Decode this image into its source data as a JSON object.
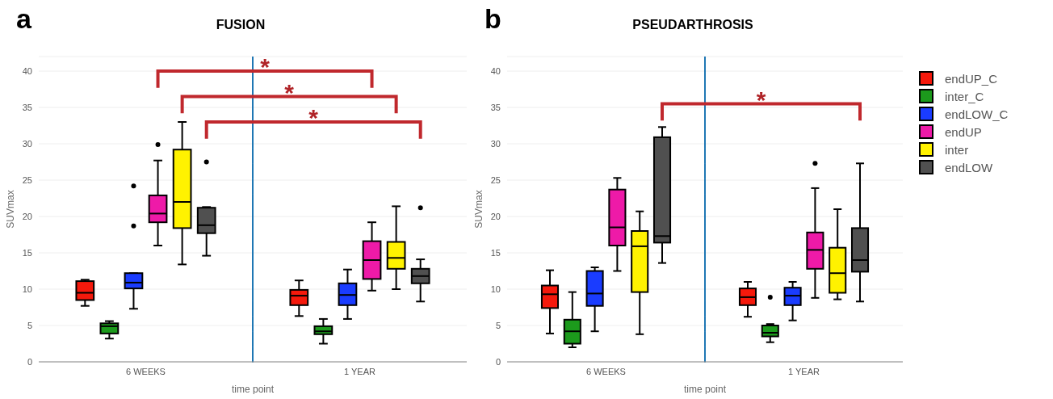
{
  "chart_data": [
    {
      "type": "box",
      "title": "FUSION",
      "xlabel": "time point",
      "ylabel": "SUVmax",
      "categories": [
        "6 WEEKS",
        "1 YEAR"
      ],
      "ylim": [
        0,
        42
      ],
      "yticks": [
        0,
        5,
        10,
        15,
        20,
        25,
        30,
        35,
        40
      ],
      "grid": "y",
      "legend": false,
      "annotations": [
        "a",
        "*",
        "*",
        "*"
      ],
      "series": [
        {
          "color": "#f5190c",
          "boxes": [
            {
              "low": 7.7,
              "q1": 8.5,
              "median": 9.5,
              "q3": 11.1,
              "high": 11.3
            },
            {
              "low": 6.3,
              "q1": 7.8,
              "median": 9.1,
              "q3": 9.9,
              "high": 11.2
            }
          ]
        },
        {
          "color": "#1c9a1c",
          "boxes": [
            {
              "low": 3.2,
              "q1": 3.9,
              "median": 4.9,
              "q3": 5.3,
              "high": 5.6
            },
            {
              "low": 2.5,
              "q1": 3.8,
              "median": 4.2,
              "q3": 4.9,
              "high": 5.9
            }
          ]
        },
        {
          "color": "#1a3cff",
          "boxes": [
            {
              "low": 7.3,
              "q1": 10.1,
              "median": 10.9,
              "q3": 12.2,
              "high": 12.2,
              "outliers": [
                18.7,
                24.2
              ]
            },
            {
              "low": 5.9,
              "q1": 7.8,
              "median": 9.2,
              "q3": 10.8,
              "high": 12.7
            }
          ]
        },
        {
          "color": "#ee1aa8",
          "boxes": [
            {
              "low": 16.0,
              "q1": 19.2,
              "median": 20.4,
              "q3": 22.9,
              "high": 27.7,
              "outliers": [
                29.9
              ]
            },
            {
              "low": 9.8,
              "q1": 11.4,
              "median": 14.0,
              "q3": 16.6,
              "high": 19.2
            }
          ]
        },
        {
          "color": "#fff200",
          "boxes": [
            {
              "low": 13.4,
              "q1": 18.4,
              "median": 22.0,
              "q3": 29.2,
              "high": 33.0
            },
            {
              "low": 10.0,
              "q1": 12.8,
              "median": 14.3,
              "q3": 16.5,
              "high": 21.4
            }
          ]
        },
        {
          "color": "#505050",
          "boxes": [
            {
              "low": 14.6,
              "q1": 17.7,
              "median": 18.8,
              "q3": 21.2,
              "high": 21.3,
              "outliers": [
                27.5
              ]
            },
            {
              "low": 8.3,
              "q1": 10.8,
              "median": 11.8,
              "q3": 12.8,
              "high": 14.1,
              "outliers": [
                21.2
              ]
            }
          ]
        }
      ]
    },
    {
      "type": "box",
      "title": "PSEUDARTHROSIS",
      "xlabel": "time point",
      "ylabel": "SUVmax",
      "categories": [
        "6 WEEKS",
        "1 YEAR"
      ],
      "ylim": [
        0,
        42
      ],
      "yticks": [
        0,
        5,
        10,
        15,
        20,
        25,
        30,
        35,
        40
      ],
      "grid": "y",
      "legend": "right",
      "annotations": [
        "b",
        "*"
      ],
      "series": [
        {
          "name": "endUP_C",
          "color": "#f5190c",
          "boxes": [
            {
              "low": 3.9,
              "q1": 7.4,
              "median": 9.3,
              "q3": 10.5,
              "high": 12.6
            },
            {
              "low": 6.2,
              "q1": 7.8,
              "median": 8.9,
              "q3": 10.1,
              "high": 11.0
            }
          ]
        },
        {
          "name": "inter_C",
          "color": "#1c9a1c",
          "boxes": [
            {
              "low": 2.0,
              "q1": 2.5,
              "median": 4.2,
              "q3": 5.8,
              "high": 9.6
            },
            {
              "low": 2.7,
              "q1": 3.5,
              "median": 4.0,
              "q3": 5.0,
              "high": 5.2,
              "outliers": [
                8.9
              ]
            }
          ]
        },
        {
          "name": "endLOW_C",
          "color": "#1a3cff",
          "boxes": [
            {
              "low": 4.2,
              "q1": 7.7,
              "median": 9.4,
              "q3": 12.5,
              "high": 13.0
            },
            {
              "low": 5.7,
              "q1": 7.8,
              "median": 9.1,
              "q3": 10.2,
              "high": 11.0
            }
          ]
        },
        {
          "name": "endUP",
          "color": "#ee1aa8",
          "boxes": [
            {
              "low": 12.5,
              "q1": 16.0,
              "median": 18.5,
              "q3": 23.7,
              "high": 25.3
            },
            {
              "low": 8.8,
              "q1": 12.8,
              "median": 15.4,
              "q3": 17.8,
              "high": 23.9,
              "outliers": [
                27.3
              ]
            }
          ]
        },
        {
          "name": "inter",
          "color": "#fff200",
          "boxes": [
            {
              "low": 3.8,
              "q1": 9.6,
              "median": 15.9,
              "q3": 18.0,
              "high": 20.7
            },
            {
              "low": 8.6,
              "q1": 9.5,
              "median": 12.2,
              "q3": 15.7,
              "high": 21.0
            }
          ]
        },
        {
          "name": "endLOW",
          "color": "#505050",
          "boxes": [
            {
              "low": 13.6,
              "q1": 16.4,
              "median": 17.3,
              "q3": 30.9,
              "high": 32.3
            },
            {
              "low": 8.3,
              "q1": 12.4,
              "median": 14.0,
              "q3": 18.4,
              "high": 27.3
            }
          ]
        }
      ]
    }
  ]
}
